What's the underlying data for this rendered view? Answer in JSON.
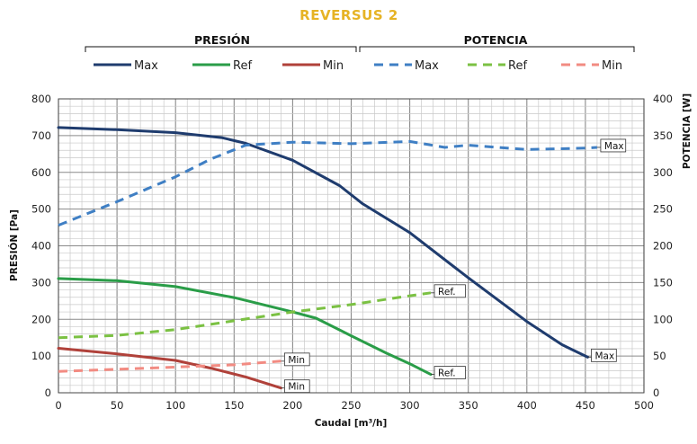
{
  "chart_data": {
    "type": "line",
    "title": "REVERSUS 2",
    "title_color": "#e6b325",
    "groups": {
      "pressure": "PRESIÓN",
      "power": "POTENCIA"
    },
    "xlabel": "Caudal [m³/h]",
    "ylabel_left": "PRESIÓN [Pa]",
    "ylabel_right": "POTENCIA [W]",
    "xlim": [
      0,
      500
    ],
    "ylim_left": [
      0,
      800
    ],
    "ylim_right": [
      0,
      400
    ],
    "x_ticks": [
      "0",
      "50",
      "100",
      "150",
      "200",
      "250",
      "300",
      "350",
      "400",
      "450",
      "500"
    ],
    "y_left_ticks": [
      "0",
      "100",
      "200",
      "300",
      "400",
      "500",
      "600",
      "700",
      "800"
    ],
    "y_right_ticks": [
      "0",
      "50",
      "100",
      "150",
      "200",
      "250",
      "300",
      "350",
      "400"
    ],
    "grid": true,
    "legend_position": "top",
    "series": [
      {
        "name": "Max",
        "group": "pressure",
        "axis": "left",
        "style": "solid",
        "color": "#1f3c6e",
        "points": [
          [
            0,
            722
          ],
          [
            50,
            716
          ],
          [
            100,
            708
          ],
          [
            140,
            694
          ],
          [
            160,
            679
          ],
          [
            200,
            633
          ],
          [
            240,
            564
          ],
          [
            260,
            514
          ],
          [
            300,
            436
          ],
          [
            350,
            313
          ],
          [
            400,
            194
          ],
          [
            430,
            131
          ],
          [
            452,
            97
          ]
        ]
      },
      {
        "name": "Ref",
        "group": "pressure",
        "axis": "left",
        "style": "solid",
        "color": "#2a9d48",
        "points": [
          [
            0,
            311
          ],
          [
            50,
            305
          ],
          [
            100,
            289
          ],
          [
            150,
            259
          ],
          [
            200,
            220
          ],
          [
            220,
            203
          ],
          [
            250,
            155
          ],
          [
            280,
            108
          ],
          [
            300,
            79
          ],
          [
            318,
            50
          ]
        ]
      },
      {
        "name": "Min",
        "group": "pressure",
        "axis": "left",
        "style": "solid",
        "color": "#b0413a",
        "points": [
          [
            0,
            121
          ],
          [
            50,
            106
          ],
          [
            100,
            88
          ],
          [
            130,
            67
          ],
          [
            160,
            43
          ],
          [
            190,
            13
          ]
        ]
      },
      {
        "name": "Max",
        "group": "power",
        "axis": "right",
        "style": "dashed",
        "color": "#3f7fc4",
        "points": [
          [
            0,
            228
          ],
          [
            50,
            260
          ],
          [
            100,
            294
          ],
          [
            130,
            318
          ],
          [
            160,
            337
          ],
          [
            200,
            341
          ],
          [
            250,
            339
          ],
          [
            300,
            342
          ],
          [
            330,
            334
          ],
          [
            350,
            337
          ],
          [
            400,
            331
          ],
          [
            450,
            333
          ],
          [
            460,
            334
          ]
        ]
      },
      {
        "name": "Ref",
        "group": "power",
        "axis": "right",
        "style": "dashed",
        "color": "#7bc143",
        "points": [
          [
            0,
            75
          ],
          [
            50,
            78
          ],
          [
            100,
            86
          ],
          [
            150,
            98
          ],
          [
            200,
            110
          ],
          [
            250,
            120
          ],
          [
            300,
            132
          ],
          [
            318,
            136
          ]
        ]
      },
      {
        "name": "Min",
        "group": "power",
        "axis": "right",
        "style": "dashed",
        "color": "#f28b82",
        "points": [
          [
            0,
            29
          ],
          [
            50,
            32
          ],
          [
            100,
            35
          ],
          [
            150,
            38
          ],
          [
            190,
            43
          ]
        ]
      }
    ],
    "annotations": [
      {
        "text": "Max",
        "series_index": 3
      },
      {
        "text": "Ref.",
        "series_index": 4
      },
      {
        "text": "Min",
        "series_index": 5
      },
      {
        "text": "Max",
        "series_index": 0
      },
      {
        "text": "Ref.",
        "series_index": 1
      },
      {
        "text": "Min",
        "series_index": 2
      }
    ]
  }
}
